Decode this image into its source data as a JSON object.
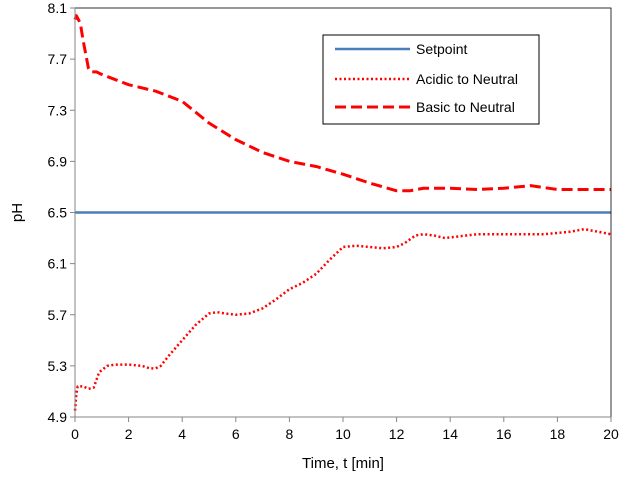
{
  "chart_data": {
    "type": "line",
    "title": "",
    "xlabel": "Time, t [min]",
    "ylabel": "pH",
    "xlim": [
      0,
      20
    ],
    "ylim": [
      4.9,
      8.1
    ],
    "xticks": [
      0,
      2,
      4,
      6,
      8,
      10,
      12,
      14,
      16,
      18,
      20
    ],
    "yticks": [
      4.9,
      5.3,
      5.7,
      6.1,
      6.5,
      6.9,
      7.3,
      7.7,
      8.1
    ],
    "grid": false,
    "legend_position": "top-right",
    "colors": {
      "setpoint": "#4a7ebb",
      "acidic": "#ff0000",
      "basic": "#ff0000",
      "axis": "#868686",
      "frame": "#000000"
    },
    "series": [
      {
        "name": "Setpoint",
        "style": "solid",
        "x": [
          0,
          20
        ],
        "y": [
          6.5,
          6.5
        ]
      },
      {
        "name": "Acidic to Neutral",
        "style": "dotted",
        "x": [
          0,
          0.05,
          0.1,
          0.3,
          0.5,
          0.7,
          0.9,
          1.2,
          1.5,
          2.0,
          2.5,
          2.8,
          3.0,
          3.2,
          3.5,
          4.0,
          4.5,
          5.0,
          5.3,
          5.6,
          6.0,
          6.5,
          7.0,
          7.5,
          8.0,
          8.5,
          9.0,
          9.5,
          10.0,
          10.5,
          11.0,
          11.5,
          12.0,
          12.3,
          12.7,
          13.0,
          13.4,
          13.8,
          14.2,
          14.6,
          15.0,
          15.5,
          16.0,
          16.5,
          17.0,
          17.5,
          18.0,
          18.5,
          19.0,
          19.5,
          20.0
        ],
        "y": [
          4.95,
          5.08,
          5.14,
          5.14,
          5.12,
          5.13,
          5.25,
          5.3,
          5.31,
          5.31,
          5.3,
          5.28,
          5.28,
          5.3,
          5.38,
          5.5,
          5.62,
          5.71,
          5.72,
          5.71,
          5.7,
          5.71,
          5.75,
          5.82,
          5.9,
          5.95,
          6.02,
          6.13,
          6.23,
          6.24,
          6.23,
          6.22,
          6.23,
          6.26,
          6.32,
          6.33,
          6.32,
          6.3,
          6.31,
          6.32,
          6.33,
          6.33,
          6.33,
          6.33,
          6.33,
          6.33,
          6.34,
          6.35,
          6.37,
          6.35,
          6.33
        ]
      },
      {
        "name": "Basic to Neutral",
        "style": "dashed",
        "x": [
          0,
          0.05,
          0.1,
          0.2,
          0.3,
          0.4,
          0.5,
          0.6,
          0.8,
          1.0,
          1.5,
          2.0,
          3.0,
          4.0,
          5.0,
          6.0,
          7.0,
          8.0,
          9.0,
          10.0,
          11.0,
          12.0,
          12.5,
          13.0,
          14.0,
          15.0,
          16.0,
          17.0,
          18.0,
          19.0,
          20.0
        ],
        "y": [
          8.01,
          8.04,
          8.02,
          7.98,
          7.85,
          7.74,
          7.63,
          7.6,
          7.6,
          7.58,
          7.54,
          7.5,
          7.45,
          7.37,
          7.2,
          7.07,
          6.97,
          6.9,
          6.86,
          6.8,
          6.73,
          6.67,
          6.67,
          6.69,
          6.69,
          6.68,
          6.69,
          6.71,
          6.68,
          6.68,
          6.68
        ]
      }
    ]
  }
}
